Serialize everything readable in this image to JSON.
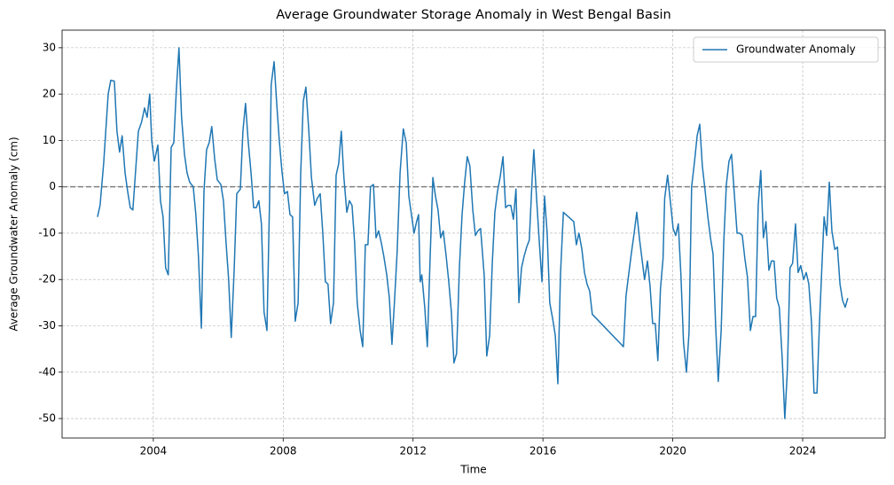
{
  "chart_data": {
    "type": "line",
    "title": "Average Groundwater Storage Anomaly in West Bengal Basin",
    "xlabel": "Time",
    "ylabel": "Average Groundwater Anomaly (cm)",
    "xlim": [
      2001.19,
      2026.54
    ],
    "ylim": [
      -54.2,
      33.8
    ],
    "xticks": [
      2004,
      2008,
      2012,
      2016,
      2020,
      2024
    ],
    "yticks": [
      -50,
      -40,
      -30,
      -20,
      -10,
      0,
      10,
      20,
      30
    ],
    "grid": true,
    "legend": "upper right",
    "hline": {
      "value": 0,
      "color": "#808080",
      "style": "dashed"
    },
    "x": [
      2002.28,
      2002.36,
      2002.47,
      2002.61,
      2002.69,
      2002.8,
      2002.88,
      2002.96,
      2003.04,
      2003.13,
      2003.21,
      2003.29,
      2003.37,
      2003.45,
      2003.54,
      2003.64,
      2003.73,
      2003.81,
      2003.89,
      2003.95,
      2004.03,
      2004.14,
      2004.22,
      2004.3,
      2004.38,
      2004.46,
      2004.55,
      2004.63,
      2004.71,
      2004.79,
      2004.87,
      2004.96,
      2005.04,
      2005.12,
      2005.23,
      2005.31,
      2005.39,
      2005.48,
      2005.56,
      2005.64,
      2005.72,
      2005.8,
      2005.89,
      2005.97,
      2006.08,
      2006.16,
      2006.24,
      2006.32,
      2006.4,
      2006.49,
      2006.57,
      2006.68,
      2006.76,
      2006.84,
      2006.92,
      2007.01,
      2007.09,
      2007.17,
      2007.25,
      2007.33,
      2007.41,
      2007.5,
      2007.58,
      2007.63,
      2007.72,
      2007.8,
      2007.88,
      2007.96,
      2008.04,
      2008.13,
      2008.21,
      2008.29,
      2008.37,
      2008.46,
      2008.54,
      2008.62,
      2008.7,
      2008.79,
      2008.87,
      2008.97,
      2009.05,
      2009.14,
      2009.22,
      2009.3,
      2009.38,
      2009.46,
      2009.55,
      2009.63,
      2009.71,
      2009.79,
      2009.87,
      2009.96,
      2010.04,
      2010.12,
      2010.2,
      2010.28,
      2010.37,
      2010.45,
      2010.53,
      2010.61,
      2010.69,
      2010.78,
      2010.86,
      2010.94,
      2011.02,
      2011.1,
      2011.19,
      2011.27,
      2011.35,
      2011.43,
      2011.51,
      2011.6,
      2011.7,
      2011.79,
      2011.87,
      2011.95,
      2012.03,
      2012.11,
      2012.17,
      2012.22,
      2012.27,
      2012.36,
      2012.44,
      2012.52,
      2012.61,
      2012.69,
      2012.77,
      2012.85,
      2012.93,
      2013.02,
      2013.1,
      2013.18,
      2013.26,
      2013.34,
      2013.43,
      2013.51,
      2013.59,
      2013.67,
      2013.75,
      2013.84,
      2013.92,
      2014.0,
      2014.08,
      2014.19,
      2014.27,
      2014.36,
      2014.44,
      2014.52,
      2014.6,
      2014.68,
      2014.77,
      2014.85,
      2014.93,
      2015.01,
      2015.09,
      2015.17,
      2015.26,
      2015.34,
      2015.42,
      2015.5,
      2015.58,
      2015.67,
      2015.72,
      2015.8,
      2015.88,
      2015.97,
      2016.05,
      2016.13,
      2016.21,
      2016.3,
      2016.38,
      2016.46,
      2016.54,
      2016.63,
      2016.71,
      2016.79,
      2016.87,
      2016.95,
      2017.03,
      2017.11,
      2017.2,
      2017.28,
      2017.36,
      2017.44,
      2017.52,
      2018.48,
      2018.56,
      2018.64,
      2018.73,
      2018.81,
      2018.89,
      2018.97,
      2019.05,
      2019.13,
      2019.22,
      2019.3,
      2019.38,
      2019.46,
      2019.54,
      2019.62,
      2019.7,
      2019.75,
      2019.84,
      2019.93,
      2020.01,
      2020.09,
      2020.17,
      2020.25,
      2020.33,
      2020.42,
      2020.5,
      2020.58,
      2020.67,
      2020.75,
      2020.83,
      2020.91,
      2020.99,
      2021.08,
      2021.16,
      2021.24,
      2021.32,
      2021.4,
      2021.49,
      2021.57,
      2021.65,
      2021.73,
      2021.81,
      2021.9,
      2021.98,
      2022.06,
      2022.14,
      2022.22,
      2022.3,
      2022.39,
      2022.47,
      2022.55,
      2022.63,
      2022.71,
      2022.79,
      2022.87,
      2022.96,
      2023.04,
      2023.12,
      2023.2,
      2023.28,
      2023.37,
      2023.45,
      2023.53,
      2023.61,
      2023.69,
      2023.78,
      2023.86,
      2023.94,
      2024.03,
      2024.11,
      2024.19,
      2024.27,
      2024.35,
      2024.44,
      2024.52,
      2024.6,
      2024.66,
      2024.74,
      2024.82,
      2024.9,
      2024.99,
      2025.07,
      2025.15,
      2025.23,
      2025.31,
      2025.39
    ],
    "series": [
      {
        "name": "Groundwater Anomaly",
        "color": "#1f77b4",
        "values": [
          -6.5,
          -4,
          5,
          20,
          23,
          22.8,
          12,
          7.5,
          11,
          3,
          -1,
          -4.5,
          -5,
          3,
          12,
          14,
          17,
          15,
          20,
          10,
          5.5,
          9,
          -3,
          -6.5,
          -17.5,
          -19,
          8.5,
          9.5,
          21,
          30,
          15,
          7,
          3,
          1,
          0,
          -6,
          -15,
          -30.5,
          -1,
          8,
          9.5,
          13,
          6,
          1.5,
          0.5,
          -3,
          -12,
          -20,
          -32.5,
          -18,
          -1.5,
          -0.5,
          12,
          18,
          10,
          3,
          -4.5,
          -4.5,
          -3,
          -8,
          -27,
          -31,
          -3,
          22,
          27,
          18,
          10,
          3.5,
          -1.5,
          -1,
          -6,
          -6.5,
          -29,
          -25,
          3,
          18.5,
          21.5,
          12,
          2,
          -4,
          -2.5,
          -1.5,
          -10,
          -20.5,
          -21,
          -29.5,
          -25,
          2.5,
          5,
          12,
          2,
          -5.5,
          -3,
          -4,
          -12,
          -25,
          -31,
          -34.5,
          -12.5,
          -12.5,
          0,
          0.5,
          -11,
          -9.5,
          -12,
          -15,
          -19,
          -24,
          -34,
          -24.5,
          -14,
          3,
          12.5,
          9.5,
          -2,
          -6,
          -10,
          -7.5,
          -6,
          -20.5,
          -19,
          -26,
          -34.5,
          -16.5,
          2,
          -2,
          -5,
          -11,
          -9.5,
          -15,
          -20.5,
          -27,
          -38,
          -36,
          -17,
          -6,
          1,
          6.5,
          4.5,
          -5,
          -10.5,
          -9.5,
          -9,
          -19,
          -36.5,
          -32,
          -16.5,
          -5.5,
          -1,
          2,
          6.5,
          -4.5,
          -4,
          -4,
          -7,
          -0.5,
          -25,
          -17.5,
          -15,
          -13,
          -11.5,
          2,
          8,
          -2,
          -11,
          -20.5,
          -2,
          -10,
          -25,
          -28.5,
          -32,
          -42.5,
          -19,
          -5.5,
          -6,
          -6.5,
          -7,
          -7.5,
          -12.5,
          -10,
          -13.5,
          -18.5,
          -21,
          -22.5,
          -27.5,
          -34.5,
          -23.5,
          -19,
          -14,
          -10,
          -5.5,
          -11,
          -15.5,
          -20,
          -16,
          -21.5,
          -29.5,
          -29.5,
          -37.5,
          -22,
          -15.5,
          -2.5,
          2.5,
          -3.5,
          -9,
          -10.5,
          -8,
          -19,
          -33.5,
          -40,
          -31.5,
          0,
          5.5,
          11,
          13.5,
          4.5,
          -0.5,
          -6.5,
          -11,
          -14.5,
          -30,
          -42,
          -31,
          -12,
          0.5,
          5.5,
          7,
          -2,
          -10,
          -10,
          -10.5,
          -15.5,
          -19.5,
          -31,
          -28,
          -28,
          -4,
          3.5,
          -11,
          -7.5,
          -18,
          -16,
          -16,
          -24,
          -26,
          -37,
          -50,
          -39.5,
          -17.5,
          -16.5,
          -8,
          -18.5,
          -17,
          -20,
          -18.5,
          -21,
          -29,
          -44.5,
          -44.5,
          -29,
          -16,
          -6.5,
          -10.5,
          1,
          -9.5,
          -13.5,
          -13,
          -21,
          -24.5,
          -26,
          -24
        ]
      }
    ]
  }
}
